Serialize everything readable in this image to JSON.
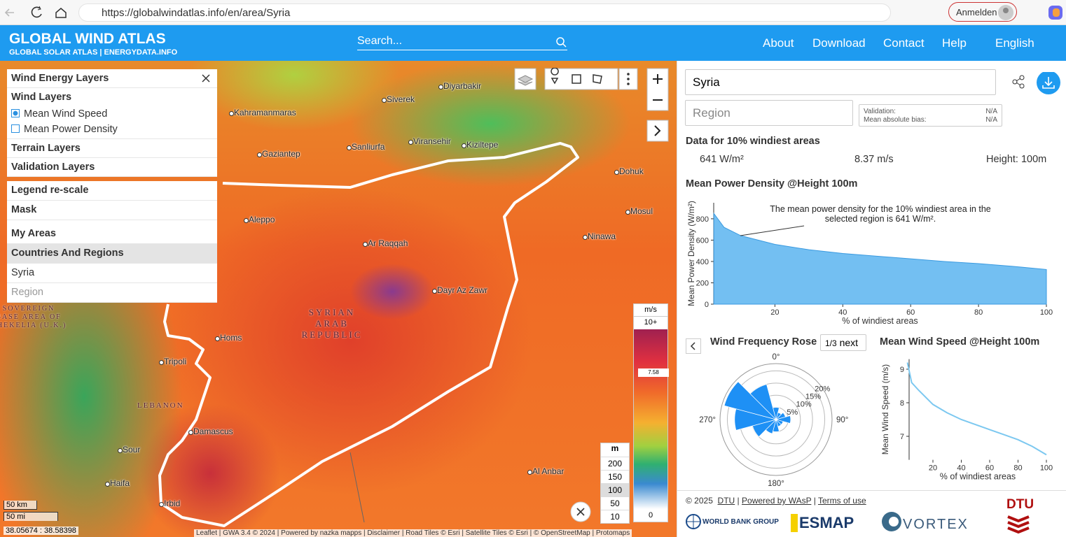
{
  "browser": {
    "url": "https://globalwindatlas.info/en/area/Syria",
    "profile_button": "Anmelden"
  },
  "header": {
    "title": "GLOBAL WIND ATLAS",
    "subtitle": "GLOBAL SOLAR ATLAS | ENERGYDATA.INFO",
    "search_placeholder": "Search...",
    "nav": [
      "About",
      "Download",
      "Contact",
      "Help",
      "English"
    ]
  },
  "layers_panel": {
    "wind_energy_layers": "Wind Energy Layers",
    "wind_layers": "Wind Layers",
    "options": [
      {
        "label": "Mean Wind Speed",
        "checked": true
      },
      {
        "label": "Mean Power Density",
        "checked": false
      }
    ],
    "sections": [
      "Terrain Layers",
      "Validation Layers",
      "Legend re-scale",
      "Mask",
      "My Areas",
      "Countries And Regions"
    ],
    "country": "Syria",
    "region": "Region"
  },
  "map": {
    "labels": [
      "Diyarbakir",
      "Siverek",
      "Kahramanmaras",
      "Gaziantep",
      "Sanliurfa",
      "Viransehir",
      "Kiziltepe",
      "Dohuk",
      "Mosul",
      "Aleppo",
      "Ar Raqqah",
      "Ninawa",
      "Dayr Az Zawr",
      "Homs",
      "Tripoli",
      "Damascus",
      "Sour",
      "Haifa",
      "Irbid",
      "Al Anbar"
    ],
    "country_label": "SYRIAN ARAB REPUBLIC",
    "lebanon_label": "LEBANON",
    "dhekelia_label": "SOVEREIGN BASE AREA OF DHEKELIA (U.K.)",
    "legend": {
      "unit": "m/s",
      "max_label": "10+",
      "marker": 7.58,
      "min": 0
    },
    "height_legend": {
      "unit": "m",
      "heights": [
        200,
        150,
        100,
        50,
        10
      ],
      "selected": 100
    },
    "scale_km": "50 km",
    "scale_mi": "50 mi",
    "coordinates": "38.05674 : 38.58398",
    "attribution": "Leaflet | GWA 3.4 © 2024 | Powered by nazka mapps | Disclaimer | Road Tiles © Esri | Satellite Tiles © Esri | © OpenStreetMap | Protomaps"
  },
  "side_panel": {
    "country": "Syria",
    "region": "Region",
    "validation_label": "Validation:",
    "validation_value": "N/A",
    "bias_label": "Mean absolute bias:",
    "bias_value": "N/A",
    "data_heading": "Data for 10% windiest areas",
    "power_density": "641 W/m²",
    "wind_speed": "8.37 m/s",
    "height": "Height: 100m",
    "rose_page": "1/3",
    "rose_next": "next"
  },
  "chart_data": [
    {
      "type": "area",
      "title": "Mean Power Density @Height 100m",
      "annotation": "The mean power density for the 10% windiest area in the selected region is 641 W/m².",
      "x_label": "% of windiest areas",
      "y_label": "Mean Power Density (W/m²)",
      "x": [
        2,
        5,
        10,
        20,
        30,
        40,
        50,
        60,
        70,
        80,
        90,
        100
      ],
      "values": [
        850,
        720,
        641,
        560,
        510,
        475,
        450,
        425,
        400,
        380,
        355,
        325
      ],
      "color": "#5ab4f0",
      "xlim": [
        0,
        100
      ],
      "ylim": [
        0,
        950
      ],
      "xticks": [
        20,
        40,
        60,
        80,
        100
      ],
      "yticks": [
        0,
        200,
        400,
        600,
        800
      ]
    },
    {
      "type": "rose",
      "title": "Wind Frequency Rose",
      "direction_labels": [
        "0°",
        "90°",
        "180°",
        "270°"
      ],
      "values": [
        5,
        3,
        4,
        6,
        3,
        3,
        5,
        6,
        10,
        17,
        22,
        15
      ],
      "color": "#1e90f5",
      "rlim": [
        0,
        23
      ],
      "rticks": [
        {
          "value": 5,
          "label": "5%"
        },
        {
          "value": 10,
          "label": "10%"
        },
        {
          "value": 15,
          "label": "15%"
        },
        {
          "value": 20,
          "label": "20%"
        }
      ]
    },
    {
      "type": "line",
      "title": "Mean Wind Speed @Height 100m",
      "x_label": "% of windiest areas",
      "y_label": "Mean Wind Speed (m/s)",
      "x": [
        2,
        5,
        10,
        20,
        30,
        40,
        50,
        60,
        70,
        80,
        90,
        100
      ],
      "values": [
        9.2,
        8.6,
        8.37,
        7.95,
        7.7,
        7.5,
        7.35,
        7.2,
        7.05,
        6.9,
        6.7,
        6.45
      ],
      "color": "#7cc8f0",
      "xlim": [
        0,
        100
      ],
      "ylim": [
        6.3,
        9.3
      ],
      "xticks": [
        20,
        40,
        60,
        80,
        100
      ],
      "yticks": [
        7,
        8,
        9
      ]
    }
  ],
  "footer": {
    "copyright": "© 2025",
    "links": [
      "DTU",
      "Powered by WAsP",
      "Terms of use"
    ],
    "logos": [
      "WORLD BANK GROUP",
      "ESMAP",
      "VORTEX",
      "DTU"
    ]
  }
}
